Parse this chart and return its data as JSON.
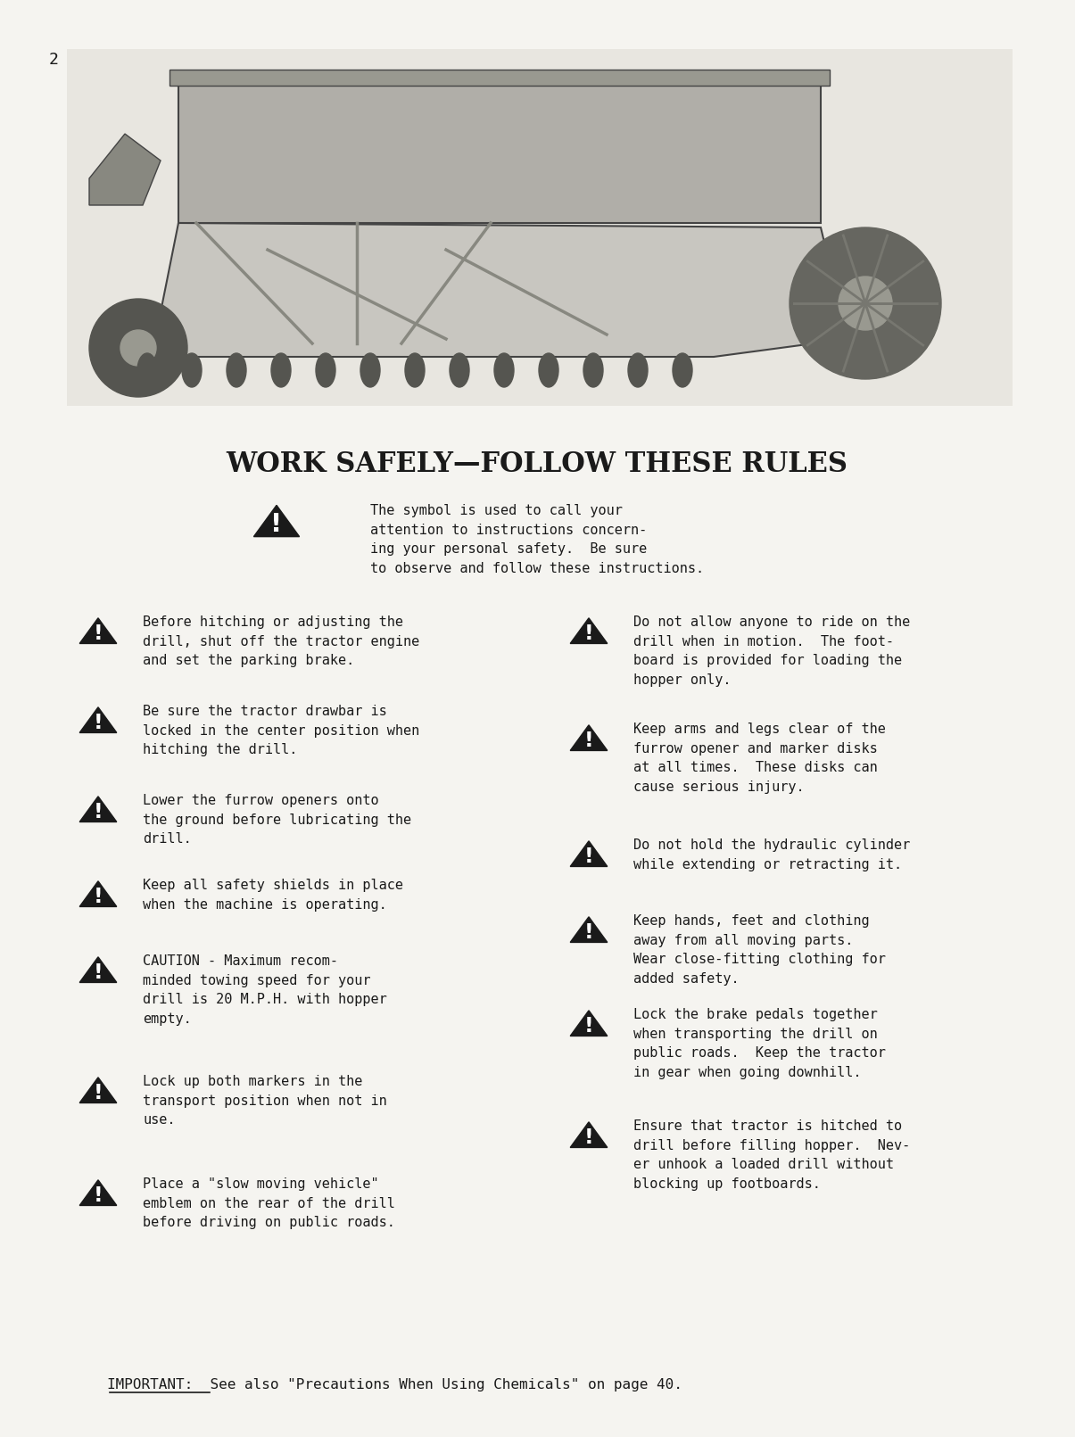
{
  "page_number": "2",
  "background_color": "#f5f4f0",
  "text_color": "#1a1a1a",
  "title": "WORK SAFELY—FOLLOW THESE RULES",
  "title_fontsize": 22,
  "title_font": "serif",
  "body_fontsize": 11,
  "body_font": "monospace",
  "intro_text": "The symbol is used to call your\nattention to instructions concern-\ning your personal safety.  Be sure\nto observe and follow these instructions.",
  "left_items": [
    "Before hitching or adjusting the\ndrill, shut off the tractor engine\nand set the parking brake.",
    "Be sure the tractor drawbar is\nlocked in the center position when\nhitching the drill.",
    "Lower the furrow openers onto\nthe ground before lubricating the\ndrill.",
    "Keep all safety shields in place\nwhen the machine is operating.",
    "CAUTION - Maximum recom-\nminded towing speed for your\ndrill is 20 M.P.H. with hopper\nempty.",
    "Lock up both markers in the\ntransport position when not in\nuse.",
    "Place a \"slow moving vehicle\"\nemblem on the rear of the drill\nbefore driving on public roads."
  ],
  "right_items": [
    "Do not allow anyone to ride on the\ndrill when in motion.  The foot-\nboard is provided for loading the\nhopper only.",
    "Keep arms and legs clear of the\nfurrow opener and marker disks\nat all times.  These disks can\ncause serious injury.",
    "Do not hold the hydraulic cylinder\nwhile extending or retracting it.",
    "Keep hands, feet and clothing\naway from all moving parts.\nWear close-fitting clothing for\nadded safety.",
    "Lock the brake pedals together\nwhen transporting the drill on\npublic roads.  Keep the tractor\nin gear when going downhill.",
    "Ensure that tractor is hitched to\ndrill before filling hopper.  Nev-\ner unhook a loaded drill without\nblocking up footboards."
  ],
  "important_text": "IMPORTANT:  See also \"Precautions When Using Chemicals\" on page 40.",
  "image_placeholder_color": "#cccccc"
}
